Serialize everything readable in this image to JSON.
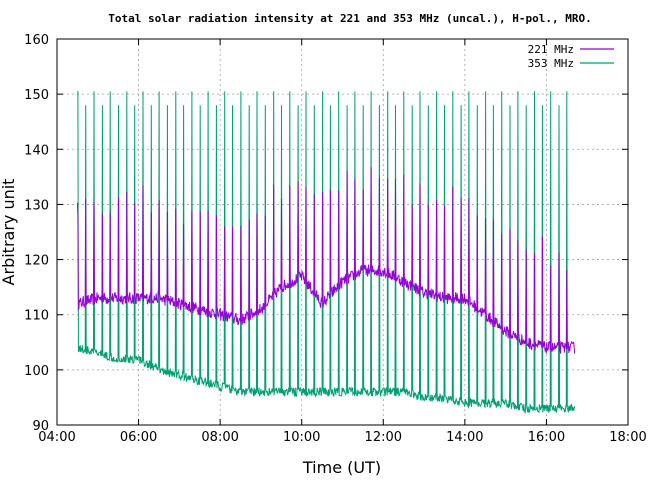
{
  "chart_data": {
    "type": "line",
    "title": "Total solar radiation intensity at 221 and 353 MHz (uncal.), H-pol., MRO.",
    "xlabel": "Time (UT)",
    "ylabel": "Arbitrary unit",
    "x_unit": "hours UT",
    "xlim": [
      4.0,
      18.0
    ],
    "ylim": [
      90,
      160
    ],
    "x_ticks": [
      "04:00",
      "06:00",
      "08:00",
      "10:00",
      "12:00",
      "14:00",
      "16:00",
      "18:00"
    ],
    "y_ticks": [
      90,
      100,
      110,
      120,
      130,
      140,
      150,
      160
    ],
    "grid": true,
    "legend_position": "top-right",
    "series": [
      {
        "name": "221 MHz",
        "color": "#9400d3",
        "x": [
          4.5,
          5.0,
          5.5,
          6.0,
          6.5,
          7.0,
          7.5,
          8.0,
          8.5,
          9.0,
          9.5,
          10.0,
          10.5,
          11.0,
          11.5,
          12.0,
          12.5,
          13.0,
          13.5,
          14.0,
          14.5,
          15.0,
          15.5,
          16.0,
          16.5,
          16.7
        ],
        "values": [
          112,
          113,
          113,
          113,
          113,
          112,
          111,
          110,
          109,
          111,
          115,
          117,
          112,
          116,
          118,
          118,
          116,
          114,
          113,
          113,
          110,
          107,
          105,
          104,
          104,
          104
        ]
      },
      {
        "name": "353 MHz",
        "color": "#009e73",
        "x": [
          4.5,
          5.0,
          5.5,
          6.0,
          6.5,
          7.0,
          7.5,
          8.0,
          8.5,
          9.0,
          9.5,
          10.0,
          10.5,
          11.0,
          11.5,
          12.0,
          12.5,
          13.0,
          13.5,
          14.0,
          14.5,
          15.0,
          15.5,
          16.0,
          16.5,
          16.7
        ],
        "values": [
          104,
          103,
          102,
          102,
          100,
          99,
          98,
          97,
          96,
          96,
          96,
          96,
          96,
          96,
          96,
          96,
          96,
          95,
          95,
          94,
          94,
          94,
          93,
          93,
          93,
          93
        ]
      }
    ],
    "spike_interval_h": 0.2
  }
}
